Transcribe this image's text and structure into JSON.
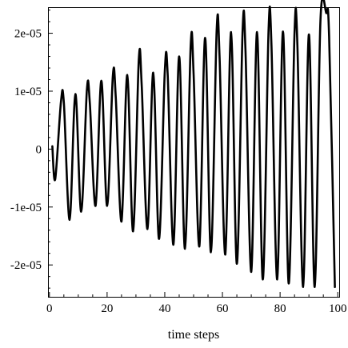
{
  "chart_data": {
    "type": "line",
    "title": "",
    "xlabel": "time steps",
    "ylabel": "",
    "xlim": [
      -0.5,
      100.5
    ],
    "ylim": [
      -2.55e-05,
      2.45e-05
    ],
    "x_ticks": [
      0,
      20,
      40,
      60,
      80,
      100
    ],
    "x_tick_labels": [
      "0",
      "20",
      "40",
      "60",
      "80",
      "100"
    ],
    "y_ticks": [
      -2e-05,
      -1e-05,
      0,
      1e-05,
      2e-05
    ],
    "y_tick_labels": [
      "-2e-05",
      "-1e-05",
      "0",
      "1e-05",
      "2e-05"
    ],
    "grid": false,
    "legend": "none",
    "line_color": "#000000",
    "series": [
      {
        "x": [
          1,
          2,
          4,
          5,
          7,
          9,
          11,
          13,
          14,
          16,
          18,
          20,
          22,
          23,
          25,
          27,
          29,
          31,
          32,
          34,
          36,
          38,
          40,
          41,
          43,
          45,
          47,
          49,
          50,
          52,
          54,
          56,
          58,
          59,
          61,
          63,
          65,
          67,
          68,
          70,
          72,
          74,
          76,
          77,
          79,
          81,
          83,
          85,
          86,
          88,
          90,
          92,
          94,
          96,
          97,
          99
        ],
        "y": [
          5e-07,
          -5.2e-06,
          8.2e-06,
          8e-06,
          -1.22e-05,
          9.5e-06,
          -1.08e-05,
          1.03e-05,
          8e-06,
          -9.8e-06,
          1.18e-05,
          -9.8e-06,
          1.27e-05,
          9e-06,
          -1.25e-05,
          1.28e-05,
          -1.42e-05,
          1.55e-05,
          1.1e-05,
          -1.38e-05,
          1.32e-05,
          -1.55e-05,
          1.33e-05,
          1.3e-05,
          -1.65e-05,
          1.6e-05,
          -1.72e-05,
          1.8e-05,
          1.3e-05,
          -1.68e-05,
          1.92e-05,
          -1.78e-05,
          2.05e-05,
          1.6e-05,
          -1.82e-05,
          2.02e-05,
          -1.98e-05,
          2.05e-05,
          1.7e-05,
          -2.12e-05,
          2.02e-05,
          -2.25e-05,
          2.05e-05,
          1.8e-05,
          -2.25e-05,
          2.03e-05,
          -2.32e-05,
          2e-05,
          1.8e-05,
          -2.38e-05,
          1.98e-05,
          -2.38e-05,
          2.22e-05,
          2.35e-05,
          1.95e-05,
          -2.38e-05
        ]
      }
    ]
  }
}
